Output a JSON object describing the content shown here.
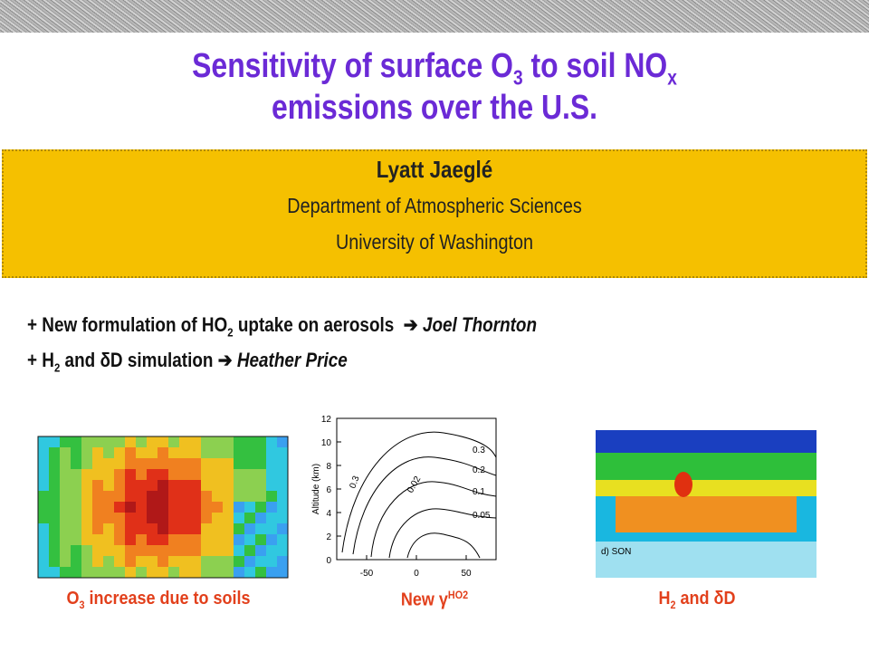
{
  "title": {
    "line1": [
      "Sensitivity of surface O",
      "3",
      " to soil NO",
      "x"
    ],
    "line2": "emissions over the U.S."
  },
  "author": {
    "name": "Lyatt Jaeglé",
    "department": "Department of Atmospheric Sciences",
    "university": "University of Washington"
  },
  "bullets": [
    {
      "parts": [
        "+ New formulation of HO",
        "2",
        " uptake on aerosols"
      ],
      "person": "Joel Thornton"
    },
    {
      "parts": [
        "+ H",
        "2",
        " and δD simulation"
      ],
      "person": "Heather Price"
    }
  ],
  "figures": {
    "contour": {
      "ylabel": "Altitude (km)",
      "yticks": [
        "0",
        "2",
        "4",
        "6",
        "8",
        "10",
        "12"
      ],
      "xticks": [
        "-50",
        "0",
        "50"
      ],
      "contour_labels": [
        "0.3",
        "0.02",
        "0.3",
        "0.2",
        "0.1",
        "0.05"
      ]
    },
    "world": {
      "panel_label": "d) SON"
    }
  },
  "captions": [
    [
      "O",
      "3",
      " increase due to soils"
    ],
    [
      "New ",
      "γ",
      "HO2"
    ],
    [
      "H",
      "2",
      " and δD"
    ]
  ]
}
